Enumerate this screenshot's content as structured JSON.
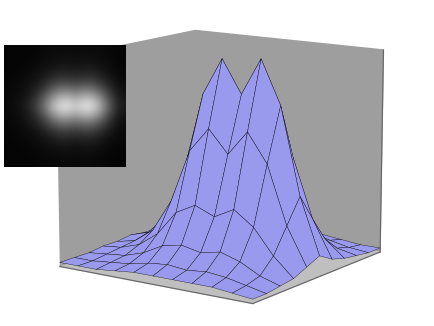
{
  "chart_data": {
    "type": "surface",
    "x": [
      0,
      1,
      2,
      3,
      4,
      5,
      6,
      7,
      8,
      9,
      10
    ],
    "y": [
      0,
      1,
      2,
      3,
      4,
      5,
      6,
      7,
      8,
      9,
      10
    ],
    "values": [
      [
        2,
        2,
        2,
        3,
        4,
        4,
        4,
        4,
        4,
        3,
        2
      ],
      [
        2,
        2,
        3,
        4,
        6,
        7,
        6,
        7,
        6,
        4,
        2
      ],
      [
        2,
        3,
        4,
        7,
        12,
        14,
        12,
        14,
        11,
        6,
        3
      ],
      [
        3,
        4,
        7,
        14,
        26,
        31,
        27,
        32,
        25,
        13,
        4
      ],
      [
        3,
        5,
        12,
        28,
        54,
        66,
        55,
        67,
        53,
        25,
        7
      ],
      [
        4,
        7,
        17,
        42,
        80,
        98,
        82,
        100,
        79,
        37,
        10
      ],
      [
        3,
        5,
        12,
        27,
        53,
        65,
        54,
        66,
        52,
        24,
        6
      ],
      [
        3,
        4,
        7,
        13,
        25,
        30,
        26,
        31,
        24,
        12,
        4
      ],
      [
        2,
        3,
        4,
        6,
        11,
        13,
        11,
        13,
        10,
        5,
        3
      ],
      [
        2,
        2,
        3,
        4,
        5,
        6,
        5,
        6,
        5,
        3,
        2
      ],
      [
        2,
        2,
        2,
        3,
        3,
        4,
        3,
        4,
        3,
        2,
        2
      ]
    ],
    "xlim": [
      0,
      10
    ],
    "ylim": [
      0,
      10
    ],
    "zlim": [
      0,
      100
    ],
    "color": "#9999ee",
    "tick_labels": false
  }
}
